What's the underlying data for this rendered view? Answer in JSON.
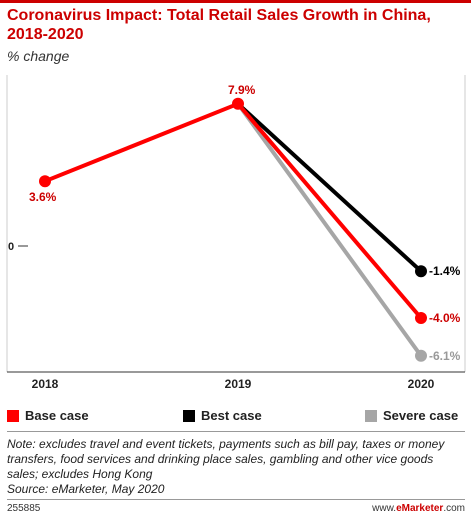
{
  "header": {
    "title": "Coronavirus Impact: Total Retail Sales Growth in China, 2018-2020",
    "subtitle": "% change"
  },
  "chart_data": {
    "type": "line",
    "categories": [
      "2018",
      "2019",
      "2020"
    ],
    "ylim": [
      -7,
      9.5
    ],
    "zero_label": "0",
    "series": [
      {
        "name": "Base case",
        "color": "#ff0000",
        "values": [
          3.6,
          7.9,
          -4.0
        ],
        "labels": [
          "3.6%",
          "7.9%",
          "-4.0%"
        ],
        "label_color": "#cc0000"
      },
      {
        "name": "Best case",
        "color": "#000000",
        "values": [
          null,
          7.9,
          -1.4
        ],
        "labels": [
          "",
          "",
          "-1.4%"
        ],
        "label_color": "#000000"
      },
      {
        "name": "Severe case",
        "color": "#a6a6a6",
        "values": [
          null,
          7.9,
          -6.1
        ],
        "labels": [
          "",
          "",
          "-6.1%"
        ],
        "label_color": "#999999"
      }
    ]
  },
  "legend": [
    {
      "label": "Base case",
      "color": "#ff0000"
    },
    {
      "label": "Best case",
      "color": "#000000"
    },
    {
      "label": "Severe case",
      "color": "#a6a6a6"
    }
  ],
  "note": "Note: excludes travel and event tickets, payments such as bill pay, taxes or money transfers, food services and drinking place sales, gambling and other vice goods sales; excludes Hong Kong",
  "source": "Source: eMarketer, May 2020",
  "footer": {
    "chart_id": "255885",
    "site_prefix": "www.",
    "site_brand": "eMarketer",
    "site_suffix": ".com"
  }
}
